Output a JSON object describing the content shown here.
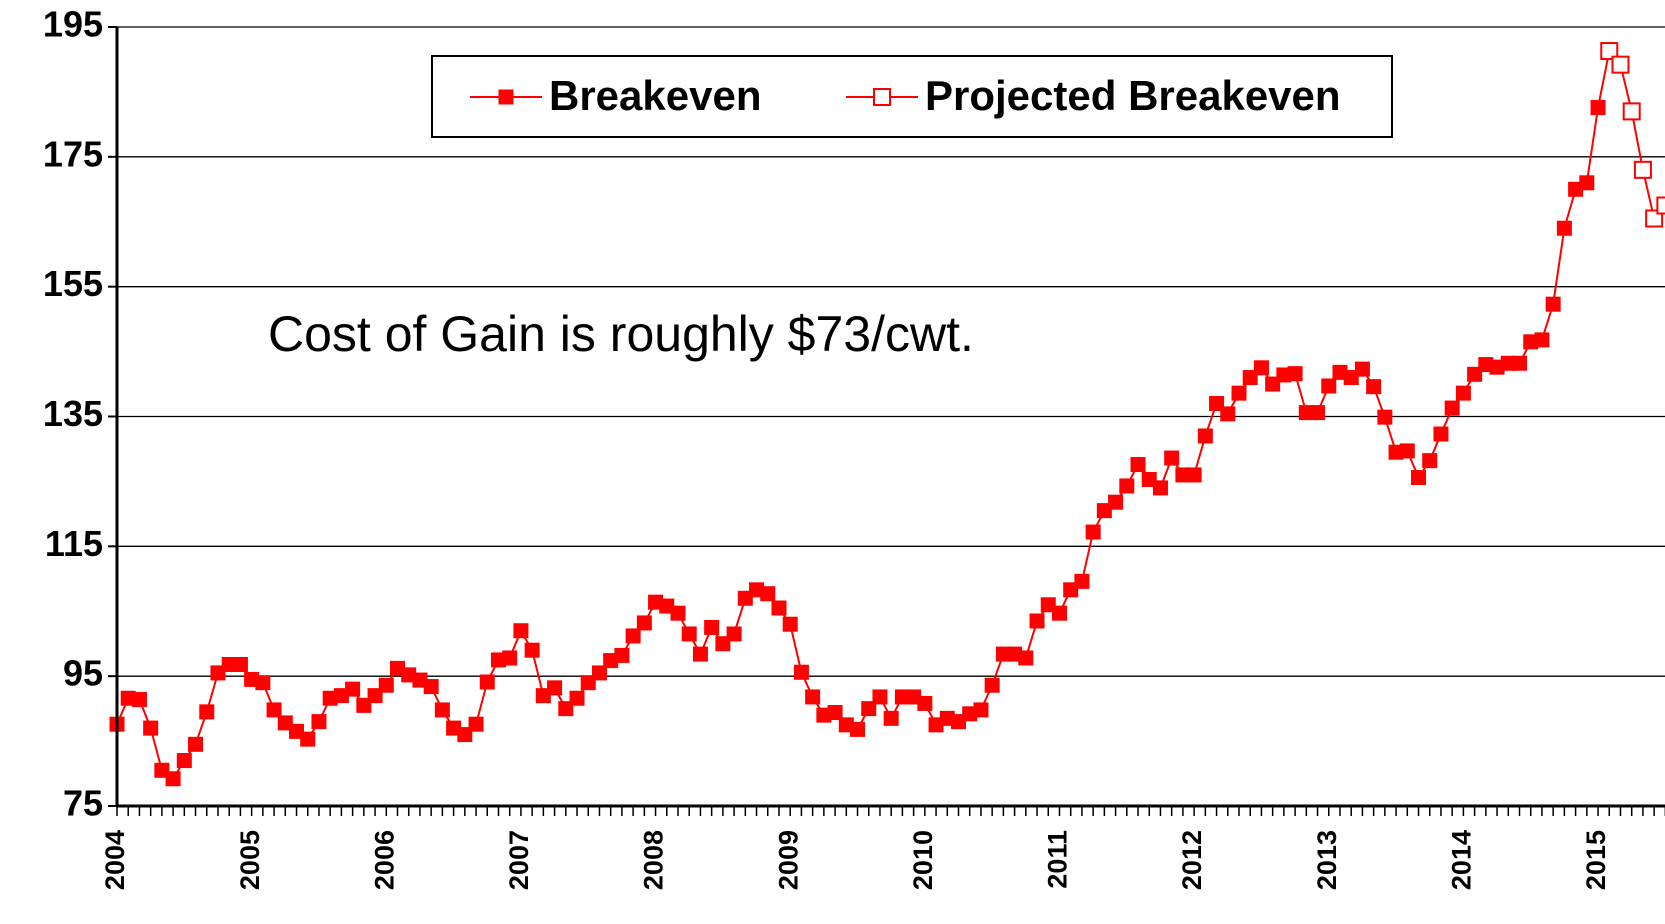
{
  "chart_data": {
    "type": "line",
    "annotation": "Cost of Gain is roughly $73/cwt.",
    "legend": "top",
    "grid": true,
    "ylim": [
      75,
      195
    ],
    "yticks": [
      75,
      95,
      115,
      135,
      155,
      175,
      195
    ],
    "categories": [
      "2004",
      null,
      null,
      null,
      null,
      null,
      null,
      null,
      null,
      null,
      null,
      null,
      "2005",
      null,
      null,
      null,
      null,
      null,
      null,
      null,
      null,
      null,
      null,
      null,
      "2006",
      null,
      null,
      null,
      null,
      null,
      null,
      null,
      null,
      null,
      null,
      null,
      "2007",
      null,
      null,
      null,
      null,
      null,
      null,
      null,
      null,
      null,
      null,
      null,
      "2008",
      null,
      null,
      null,
      null,
      null,
      null,
      null,
      null,
      null,
      null,
      null,
      "2009",
      null,
      null,
      null,
      null,
      null,
      null,
      null,
      null,
      null,
      null,
      null,
      "2010",
      null,
      null,
      null,
      null,
      null,
      null,
      null,
      null,
      null,
      null,
      null,
      "2011",
      null,
      null,
      null,
      null,
      null,
      null,
      null,
      null,
      null,
      null,
      null,
      "2012",
      null,
      null,
      null,
      null,
      null,
      null,
      null,
      null,
      null,
      null,
      null,
      "2013",
      null,
      null,
      null,
      null,
      null,
      null,
      null,
      null,
      null,
      null,
      null,
      "2014",
      null,
      null,
      null,
      null,
      null,
      null,
      null,
      null,
      null,
      null,
      null,
      "2015",
      null,
      null,
      null,
      null,
      null,
      null
    ],
    "series": [
      {
        "name": "Breakeven",
        "color": "#ff0000",
        "marker": "filled",
        "values": [
          87.6,
          91.6,
          91.4,
          87,
          80.5,
          79.2,
          82,
          84.5,
          89.5,
          95.5,
          96.8,
          96.8,
          94.5,
          94,
          89.8,
          87.8,
          86.5,
          85.3,
          88,
          91.6,
          92,
          93,
          90.5,
          92,
          93.6,
          96.2,
          95.2,
          94.4,
          93.4,
          89.8,
          87,
          86,
          87.6,
          94.1,
          97.5,
          97.8,
          102,
          99,
          92,
          93.2,
          90,
          91.6,
          94,
          95.5,
          97.4,
          98.2,
          101.2,
          103.2,
          106.4,
          105.8,
          104.7,
          101.5,
          98.4,
          102.5,
          100,
          101.5,
          107,
          108.3,
          107.7,
          105.5,
          103,
          95.6,
          91.8,
          89,
          89.4,
          87.5,
          86.8,
          90,
          91.8,
          88.5,
          91.8,
          91.8,
          90.8,
          87.5,
          88.5,
          88,
          89.2,
          89.8,
          93.6,
          98.4,
          98.4,
          97.8,
          103.5,
          106,
          104.7,
          108.3,
          109.6,
          117.2,
          120.5,
          121.8,
          124.3,
          127.6,
          125.3,
          124,
          128.6,
          126,
          126,
          132,
          137,
          135.4,
          138.6,
          141,
          142.5,
          140,
          141.4,
          141.6,
          135.6,
          135.6,
          139.7,
          141.8,
          141,
          142.3,
          139.6,
          134.9,
          129.5,
          129.7,
          125.6,
          128.2,
          132.3,
          136.3,
          138.6,
          141.5,
          143,
          142.6,
          143.2,
          143.2,
          146.5,
          146.8,
          152.3,
          164,
          170,
          171,
          182.6,
          191.3,
          null,
          null,
          null,
          null,
          null
        ]
      },
      {
        "name": "Projected Breakeven",
        "color": "#ff0000",
        "marker": "open",
        "values": [
          null,
          null,
          null,
          null,
          null,
          null,
          null,
          null,
          null,
          null,
          null,
          null,
          null,
          null,
          null,
          null,
          null,
          null,
          null,
          null,
          null,
          null,
          null,
          null,
          null,
          null,
          null,
          null,
          null,
          null,
          null,
          null,
          null,
          null,
          null,
          null,
          null,
          null,
          null,
          null,
          null,
          null,
          null,
          null,
          null,
          null,
          null,
          null,
          null,
          null,
          null,
          null,
          null,
          null,
          null,
          null,
          null,
          null,
          null,
          null,
          null,
          null,
          null,
          null,
          null,
          null,
          null,
          null,
          null,
          null,
          null,
          null,
          null,
          null,
          null,
          null,
          null,
          null,
          null,
          null,
          null,
          null,
          null,
          null,
          null,
          null,
          null,
          null,
          null,
          null,
          null,
          null,
          null,
          null,
          null,
          null,
          null,
          null,
          null,
          null,
          null,
          null,
          null,
          null,
          null,
          null,
          null,
          null,
          null,
          null,
          null,
          null,
          null,
          null,
          null,
          null,
          null,
          null,
          null,
          null,
          null,
          null,
          null,
          null,
          null,
          null,
          null,
          null,
          null,
          null,
          null,
          null,
          null,
          191.3,
          189.2,
          182,
          173,
          165.5,
          167.5
        ]
      }
    ]
  }
}
